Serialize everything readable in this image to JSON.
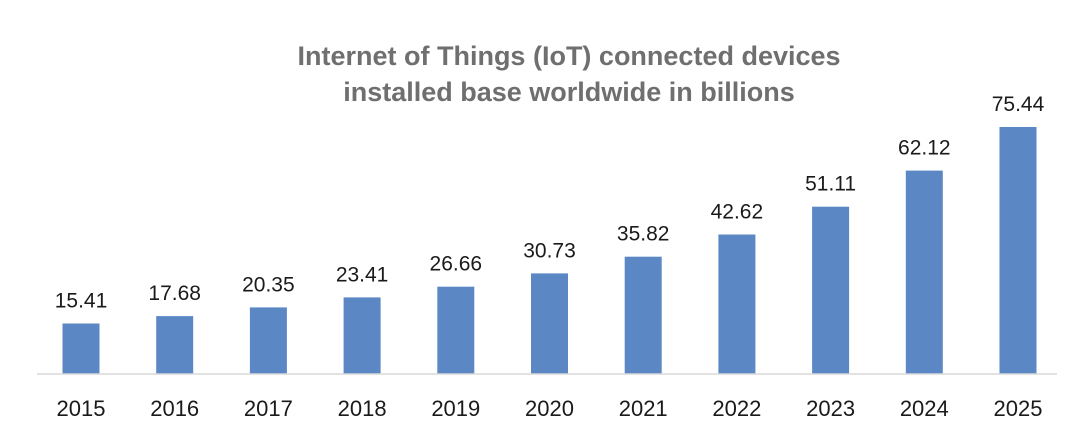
{
  "chart_data": {
    "type": "bar",
    "title": "Internet of Things (IoT) connected devices installed base worldwide in billions",
    "title_lines": [
      "Internet of Things (IoT) connected devices",
      "installed base worldwide in billions"
    ],
    "xlabel": "",
    "ylabel": "",
    "categories": [
      "2015",
      "2016",
      "2017",
      "2018",
      "2019",
      "2020",
      "2021",
      "2022",
      "2023",
      "2024",
      "2025"
    ],
    "values": [
      15.41,
      17.68,
      20.35,
      23.41,
      26.66,
      30.73,
      35.82,
      42.62,
      51.11,
      62.12,
      75.44
    ],
    "data_labels": [
      "15.41",
      "17.68",
      "20.35",
      "23.41",
      "26.66",
      "30.73",
      "35.82",
      "42.62",
      "51.11",
      "62.12",
      "75.44"
    ],
    "ylim": [
      0,
      75.44
    ],
    "grid": false,
    "legend": "none",
    "colors": {
      "bar": "#5b87c5",
      "title": "#6f6f6f",
      "text": "#1a1a1a",
      "axis": "#d9d9d9"
    }
  }
}
